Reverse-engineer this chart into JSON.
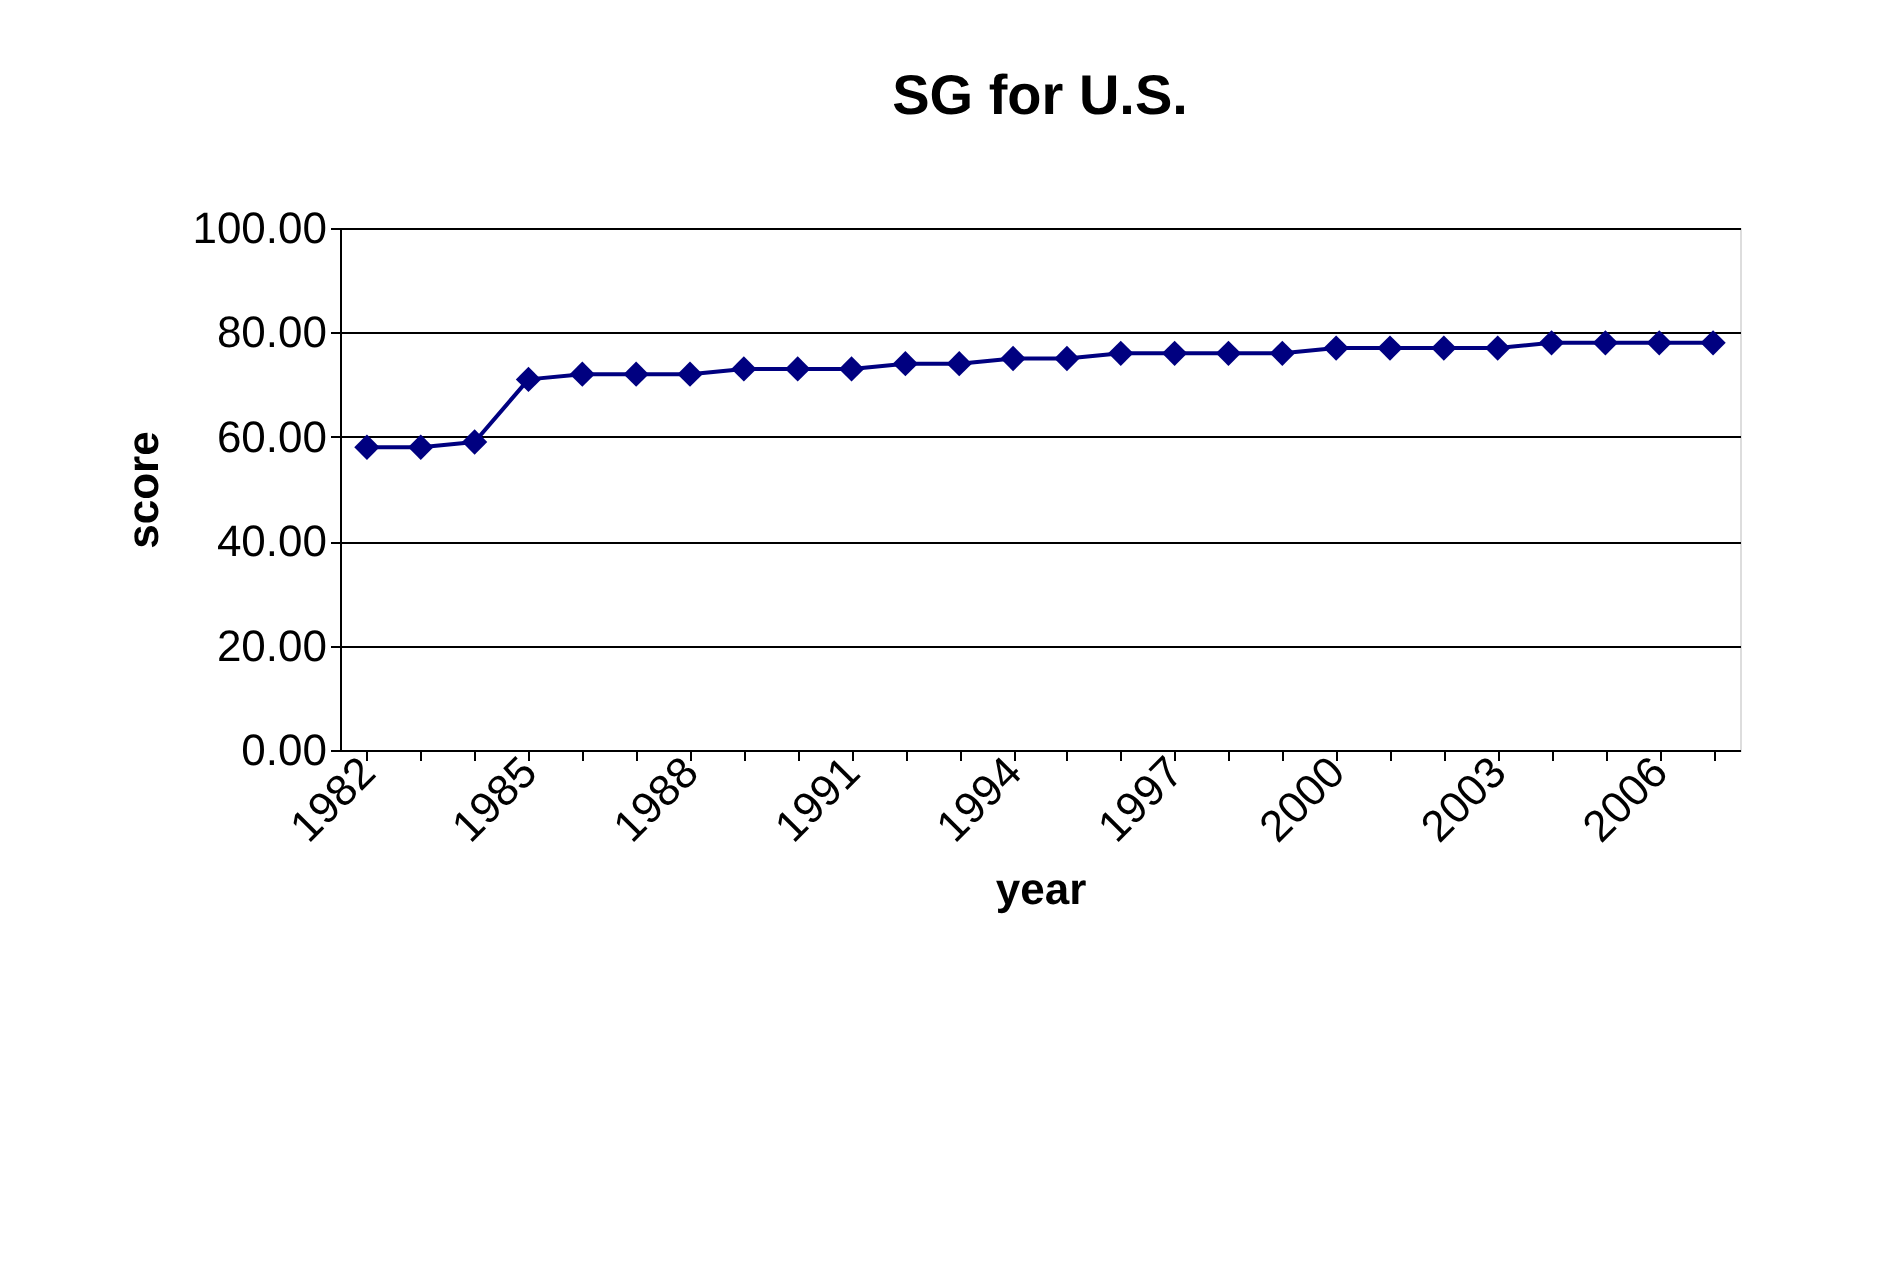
{
  "chart_data": {
    "type": "line",
    "title": "SG for U.S.",
    "xlabel": "year",
    "ylabel": "score",
    "categories": [
      "1982",
      null,
      null,
      "1985",
      null,
      null,
      "1988",
      null,
      null,
      "1991",
      null,
      null,
      "1994",
      null,
      null,
      "1997",
      null,
      null,
      "2000",
      null,
      null,
      "2003",
      null,
      null,
      "2006",
      null
    ],
    "series": [
      {
        "color": "#000080",
        "values": [
          58,
          58,
          59,
          71,
          72,
          72,
          72,
          73,
          73,
          73,
          74,
          74,
          75,
          75,
          76,
          76,
          76,
          76,
          77,
          77,
          77,
          77,
          78,
          78,
          78,
          78
        ]
      }
    ],
    "ylim": [
      0,
      100
    ],
    "yticks": [
      {
        "value": 0,
        "label": "0.00"
      },
      {
        "value": 20,
        "label": "20.00"
      },
      {
        "value": 40,
        "label": "40.00"
      },
      {
        "value": 60,
        "label": "60.00"
      },
      {
        "value": 80,
        "label": "80.00"
      },
      {
        "value": 100,
        "label": "100.00"
      }
    ],
    "grid": "y",
    "marker": "diamond",
    "line_style": "solid"
  }
}
